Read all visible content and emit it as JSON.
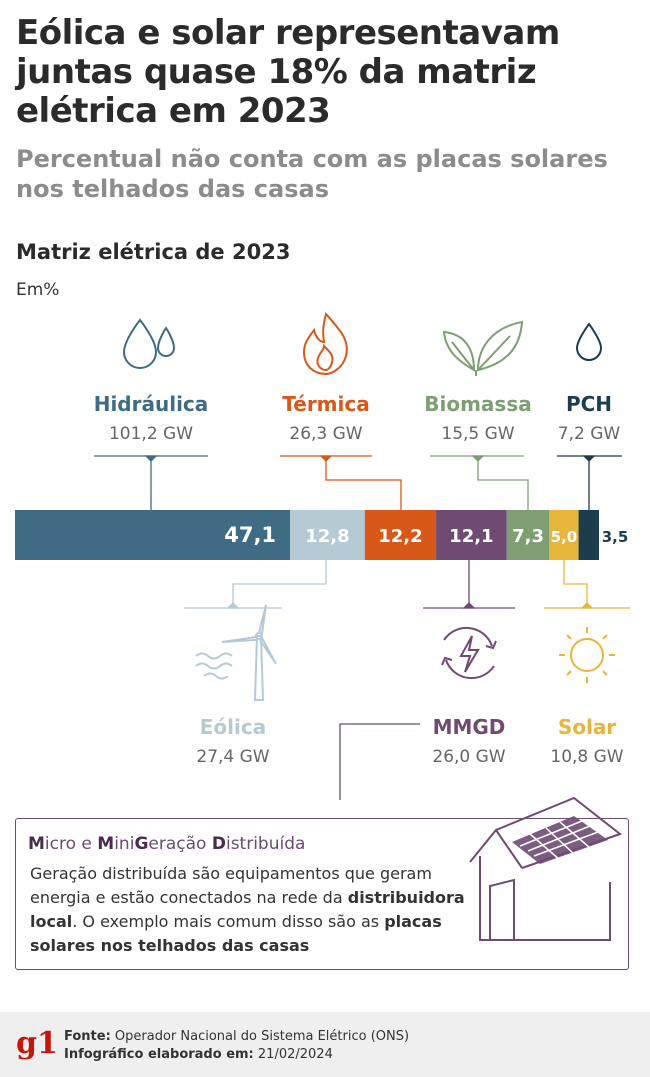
{
  "header": {
    "title": "Eólica e solar representavam juntas quase 18% da matriz elétrica em 2023",
    "subtitle": "Percentual não conta com as placas solares nos telhados das casas"
  },
  "chart_data": {
    "type": "bar",
    "title": "Matriz elétrica de 2023",
    "unit": "Em%",
    "segments": [
      {
        "name": "Hidráulica",
        "percent": 47.1,
        "label": "47,1",
        "capacity": "101,2 GW",
        "color": "#3f6b84",
        "icon": "water-drops-icon"
      },
      {
        "name": "Eólica",
        "percent": 12.8,
        "label": "12,8",
        "capacity": "27,4 GW",
        "color": "#b6cad5",
        "icon": "wind-turbine-icon"
      },
      {
        "name": "Térmica",
        "percent": 12.2,
        "label": "12,2",
        "capacity": "26,3 GW",
        "color": "#d8581a",
        "icon": "flame-icon"
      },
      {
        "name": "MMGD",
        "percent": 12.1,
        "label": "12,1",
        "capacity": "26,0 GW",
        "color": "#6f4a73",
        "icon": "energy-cycle-icon"
      },
      {
        "name": "Biomassa",
        "percent": 7.3,
        "label": "7,3",
        "capacity": "15,5 GW",
        "color": "#7e9f73",
        "icon": "leaves-icon"
      },
      {
        "name": "Solar",
        "percent": 5.0,
        "label": "5,0",
        "capacity": "10,8 GW",
        "color": "#e8b63d",
        "icon": "sun-icon"
      },
      {
        "name": "PCH",
        "percent": 3.5,
        "label": "3,5",
        "capacity": "7,2 GW",
        "color": "#1d3d4f",
        "icon": "drop-icon"
      }
    ]
  },
  "info_box": {
    "title_parts": [
      {
        "t": "M",
        "b": true
      },
      {
        "t": "icro e ",
        "b": false
      },
      {
        "t": "M",
        "b": true
      },
      {
        "t": "ini",
        "b": false
      },
      {
        "t": "G",
        "b": true
      },
      {
        "t": "eração ",
        "b": false
      },
      {
        "t": "D",
        "b": true
      },
      {
        "t": "istribuída",
        "b": false
      }
    ],
    "text_parts": [
      {
        "t": "Geração distribuída são equipamentos que geram energia e estão conectados na rede da ",
        "b": false
      },
      {
        "t": "distribuidora local",
        "b": true
      },
      {
        "t": ". O exemplo mais comum disso são as ",
        "b": false
      },
      {
        "t": "placas solares nos telhados das casas",
        "b": true
      }
    ]
  },
  "footer": {
    "logo": "g1",
    "source_label": "Fonte:",
    "source_value": "Operador Nacional do Sistema Elétrico (ONS)",
    "date_label": "Infográfico elaborado em:",
    "date_value": "21/02/2024"
  }
}
